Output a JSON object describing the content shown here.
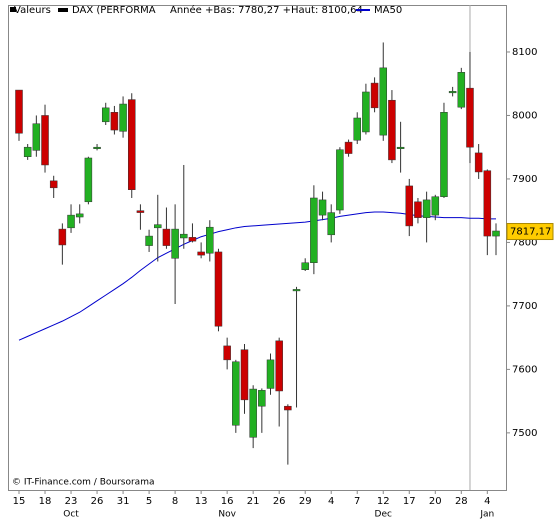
{
  "chart_data": {
    "type": "candlestick",
    "header": {
      "label": "Valeurs",
      "instrument": "DAX (PERFORMA",
      "stats": "Année +Bas: 7780,27 +Haut: 8100,64"
    },
    "credit": "© IT-Finance.com / Boursorama",
    "categories": [
      "15",
      null,
      null,
      "18",
      null,
      null,
      "23",
      null,
      null,
      "26",
      null,
      null,
      "31",
      null,
      null,
      "5",
      null,
      null,
      "8",
      null,
      null,
      "13",
      null,
      null,
      "16",
      null,
      null,
      "21",
      null,
      null,
      "26",
      null,
      null,
      "29",
      null,
      null,
      "4",
      null,
      null,
      "7",
      null,
      null,
      "12",
      null,
      null,
      "17",
      null,
      null,
      "20",
      null,
      null,
      "28",
      null,
      null,
      "4",
      null
    ],
    "months": [
      null,
      null,
      null,
      null,
      null,
      null,
      "Oct",
      null,
      null,
      null,
      null,
      null,
      null,
      null,
      null,
      null,
      null,
      null,
      null,
      null,
      null,
      null,
      null,
      null,
      "Nov",
      null,
      null,
      null,
      null,
      null,
      null,
      null,
      null,
      null,
      null,
      null,
      null,
      null,
      null,
      null,
      null,
      null,
      "Dec",
      null,
      null,
      null,
      null,
      null,
      null,
      null,
      null,
      null,
      null,
      null,
      "Jan",
      null
    ],
    "open": [
      8040,
      7935,
      7945,
      8000,
      7897,
      7821,
      7823,
      7840,
      7864,
      7948,
      7990,
      8005,
      7975,
      8025,
      7850,
      7795,
      7823,
      7821,
      7775,
      7807,
      7808,
      7785,
      7783,
      7785,
      7637,
      7512,
      7631,
      7493,
      7542,
      7570,
      7645,
      7542,
      7725,
      7757,
      7768,
      7843,
      7812,
      7851,
      7958,
      7961,
      7974,
      8051,
      7969,
      8024,
      7950,
      7889,
      7864,
      7839,
      7843,
      7872,
      8038,
      8013,
      8043,
      7941,
      7913,
      7810
    ],
    "high": [
      8040,
      7955,
      8000,
      8017,
      7905,
      7830,
      7860,
      7860,
      7935,
      7955,
      8020,
      8015,
      8030,
      8035,
      7860,
      7820,
      7875,
      7855,
      7860,
      7922,
      7830,
      7800,
      7835,
      7790,
      7650,
      7615,
      7640,
      7575,
      7570,
      7625,
      7650,
      7545,
      7730,
      7775,
      7890,
      7880,
      7860,
      7950,
      7962,
      8005,
      8050,
      8060,
      8115,
      8040,
      7990,
      7900,
      7870,
      7880,
      7875,
      8020,
      8045,
      8075,
      8100,
      7955,
      7915,
      7830
    ],
    "low": [
      7960,
      7930,
      7935,
      7910,
      7870,
      7765,
      7815,
      7830,
      7860,
      7945,
      7985,
      7970,
      7965,
      7870,
      7820,
      7785,
      7770,
      7790,
      7703,
      7790,
      7800,
      7775,
      7770,
      7660,
      7600,
      7500,
      7530,
      7476,
      7500,
      7560,
      7510,
      7450,
      7540,
      7755,
      7750,
      7835,
      7800,
      7845,
      7935,
      7955,
      7970,
      8005,
      7960,
      7925,
      7910,
      7810,
      7830,
      7800,
      7835,
      7870,
      8030,
      8010,
      7925,
      7900,
      7780,
      7780
    ],
    "close": [
      7972,
      7950,
      7987,
      7922,
      7886,
      7796,
      7843,
      7845,
      7933,
      7950,
      8012,
      7977,
      8018,
      7883,
      7847,
      7810,
      7828,
      7795,
      7821,
      7813,
      7802,
      7780,
      7824,
      7668,
      7615,
      7612,
      7552,
      7569,
      7567,
      7615,
      7566,
      7536,
      7726,
      7768,
      7870,
      7867,
      7847,
      7946,
      7940,
      7996,
      8037,
      8012,
      8075,
      7930,
      7950,
      7826,
      7839,
      7867,
      7872,
      8005,
      8038,
      8068,
      7950,
      7911,
      7810,
      7818
    ],
    "up_color": "#22b022",
    "down_color": "#cc0000",
    "overlay": {
      "name": "MA50",
      "color": "#0000cc",
      "values": [
        7646,
        7652,
        7658,
        7664,
        7670,
        7676,
        7683,
        7690,
        7699,
        7708,
        7717,
        7726,
        7735,
        7745,
        7756,
        7766,
        7776,
        7783,
        7790,
        7797,
        7803,
        7809,
        7813,
        7817,
        7820,
        7823,
        7825,
        7826,
        7827,
        7828,
        7829,
        7830,
        7831,
        7832,
        7834,
        7836,
        7838,
        7841,
        7843,
        7845,
        7847,
        7848,
        7848,
        7847,
        7846,
        7844,
        7842,
        7841,
        7840,
        7839,
        7839,
        7839,
        7838,
        7838,
        7837,
        7837
      ]
    },
    "last_value": {
      "value": 7817.17,
      "label": "7817,17"
    },
    "ylim": [
      7410,
      8174
    ],
    "yticks": [
      7500,
      7600,
      7700,
      7800,
      7900,
      8000,
      8100
    ],
    "grid": false
  }
}
